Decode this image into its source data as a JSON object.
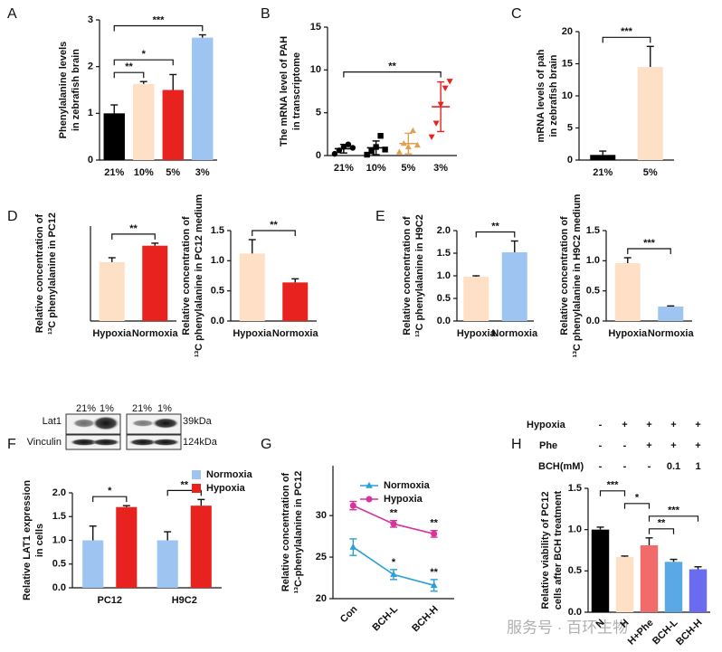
{
  "chart_data": [
    {
      "panel": "A",
      "type": "bar",
      "categories": [
        "21%",
        "10%",
        "5%",
        "3%"
      ],
      "values": [
        1.0,
        1.63,
        1.5,
        2.62
      ],
      "errors": [
        0.18,
        0.05,
        0.33,
        0.06
      ],
      "colors": [
        "#000000",
        "#fde0c5",
        "#e8231f",
        "#9ec5f2"
      ],
      "ylabel": [
        "Phenylalanine levels",
        "in zebrafish brain"
      ],
      "ylim": [
        0,
        3
      ],
      "yticks": [
        0,
        1,
        2,
        3
      ],
      "brackets": [
        {
          "from": 0,
          "to": 1,
          "text": "**"
        },
        {
          "from": 0,
          "to": 2,
          "text": "*"
        },
        {
          "from": 0,
          "to": 3,
          "text": "***"
        }
      ]
    },
    {
      "panel": "B",
      "type": "dot",
      "categories": [
        "21%",
        "10%",
        "5%",
        "3%"
      ],
      "points": [
        [
          0.2,
          0.6,
          1.0,
          1.3,
          0.9
        ],
        [
          0.1,
          0.5,
          1.0,
          2.3,
          0.7
        ],
        [
          0.4,
          1.4,
          1.0,
          2.9,
          1.2
        ],
        [
          2.2,
          3.8,
          6.0,
          7.9,
          8.7
        ]
      ],
      "values": [
        0.8,
        0.9,
        1.4,
        5.7
      ],
      "errors": [
        0.5,
        0.8,
        1.2,
        2.9
      ],
      "colors": [
        "#000000",
        "#000000",
        "#e0a050",
        "#e8231f"
      ],
      "markers": [
        "circle",
        "square",
        "triangle",
        "triangle-down"
      ],
      "ylabel": [
        "The mRNA level of  PAH",
        "in transcriptome"
      ],
      "ylim": [
        0,
        15
      ],
      "yticks": [
        0,
        5,
        10,
        15
      ],
      "brackets": [
        {
          "from": 0,
          "to": 3,
          "text": "**"
        }
      ]
    },
    {
      "panel": "C",
      "type": "bar",
      "categories": [
        "21%",
        "5%"
      ],
      "values": [
        0.8,
        14.5
      ],
      "errors": [
        0.6,
        3.2
      ],
      "colors": [
        "#000000",
        "#fde0c5"
      ],
      "ylabel": [
        "mRNA levels of pah",
        "in zebrafish brain"
      ],
      "ylim": [
        0,
        20
      ],
      "yticks": [
        0,
        5,
        10,
        15,
        20
      ],
      "brackets": [
        {
          "from": 0,
          "to": 1,
          "text": "***"
        }
      ]
    },
    {
      "panel": "D",
      "type": "bar",
      "categories": [
        "Hypoxia",
        "Normoxia"
      ],
      "values": [
        0.93,
        1.19
      ],
      "errors": [
        0.07,
        0.04
      ],
      "colors": [
        "#fde0c5",
        "#e8231f"
      ],
      "ylabel": [
        "Relative concentration of",
        "¹³C phenylalanine in PC12"
      ],
      "ylim": [
        0,
        1.5
      ],
      "yticks": [],
      "brackets": [
        {
          "from": 0,
          "to": 1,
          "text": "**"
        }
      ]
    },
    {
      "type": "bar",
      "categories": [
        "Hypoxia",
        "Normoxia"
      ],
      "values": [
        1.12,
        0.64
      ],
      "errors": [
        0.23,
        0.06
      ],
      "colors": [
        "#fde0c5",
        "#e8231f"
      ],
      "ylabel": [
        "Relative concentration of",
        "¹³C phenylalanine in PC12 medium"
      ],
      "ylim": [
        0,
        1.5
      ],
      "yticks": [
        {
          "value": 0,
          "label": "0.0"
        },
        {
          "value": 0.5,
          "label": "0.5"
        },
        {
          "value": 1,
          "label": "1.0"
        },
        {
          "value": 1.5,
          "label": "1.5"
        }
      ],
      "brackets": [
        {
          "from": 0,
          "to": 1,
          "text": "**"
        }
      ]
    },
    {
      "panel": "E",
      "type": "bar",
      "categories": [
        "Hypoxia",
        "Normoxia"
      ],
      "values": [
        0.98,
        1.52
      ],
      "errors": [
        0.02,
        0.25
      ],
      "colors": [
        "#fde0c5",
        "#9ec5f2"
      ],
      "ylabel": [
        "Relative concentration of",
        "¹³C phenylalanine in H9C2"
      ],
      "ylim": [
        0,
        2
      ],
      "yticks": [
        {
          "value": 0,
          "label": "0.0"
        },
        {
          "value": 0.5,
          "label": "0.5"
        },
        {
          "value": 1,
          "label": "1.0"
        },
        {
          "value": 1.5,
          "label": "1.5"
        },
        {
          "value": 2,
          "label": "2.0"
        }
      ],
      "brackets": [
        {
          "from": 0,
          "to": 1,
          "text": "**"
        }
      ]
    },
    {
      "type": "bar",
      "categories": [
        "Hypoxia",
        "Normoxia"
      ],
      "values": [
        0.96,
        0.24
      ],
      "errors": [
        0.09,
        0.01
      ],
      "colors": [
        "#fde0c5",
        "#9ec5f2"
      ],
      "ylabel": [
        "Relative concentration of",
        "¹³C phenylalanine in H9C2 medium"
      ],
      "ylim": [
        0,
        1.5
      ],
      "yticks": [
        {
          "value": 0,
          "label": "0.0"
        },
        {
          "value": 0.5,
          "label": "0.5"
        },
        {
          "value": 1,
          "label": "1.0"
        },
        {
          "value": 1.5,
          "label": "1.5"
        }
      ],
      "brackets": [
        {
          "from": 0,
          "to": 1,
          "text": "***"
        }
      ]
    },
    {
      "panel": "F",
      "type": "grouped",
      "blot": {
        "lanes": [
          "21%",
          "1%",
          "21%",
          "1%"
        ],
        "rows": [
          "Lat1",
          "Vinculin"
        ],
        "sizes": [
          "39kDa",
          "124kDa"
        ]
      },
      "categories": [
        "PC12",
        "H9C2"
      ],
      "series": [
        {
          "name": "Normoxia",
          "color": "#9ec5f2",
          "values": [
            1.0,
            1.0
          ],
          "errors": [
            0.3,
            0.18
          ]
        },
        {
          "name": "Hypoxia",
          "color": "#e8231f",
          "values": [
            1.7,
            1.73
          ],
          "errors": [
            0.03,
            0.13
          ]
        }
      ],
      "ylabel": [
        "Relative LAT1 expression",
        "in cells"
      ],
      "ylim": [
        0,
        2
      ],
      "yticks": [
        {
          "value": 0,
          "label": "0.0"
        },
        {
          "value": 0.5,
          "label": "0.5"
        },
        {
          "value": 1,
          "label": "1.0"
        },
        {
          "value": 1.5,
          "label": "1.5"
        },
        {
          "value": 2,
          "label": "2.0"
        }
      ],
      "brackets": [
        {
          "category": 0,
          "text": "*"
        },
        {
          "category": 1,
          "text": "**"
        }
      ]
    },
    {
      "panel": "G",
      "type": "line",
      "categories": [
        "Con",
        "BCH-L",
        "BCH-H"
      ],
      "series": [
        {
          "name": "Normoxia",
          "color": "#2a9fd8",
          "marker": "triangle",
          "values": [
            26.2,
            22.9,
            21.6
          ],
          "errors": [
            1.0,
            0.6,
            0.7
          ]
        },
        {
          "name": "Hypoxia",
          "color": "#d6349a",
          "marker": "circle",
          "values": [
            31.2,
            29.0,
            27.8
          ],
          "errors": [
            0.5,
            0.4,
            0.4
          ]
        }
      ],
      "annotations": [
        {
          "series": 0,
          "index": 1,
          "text": "*"
        },
        {
          "series": 0,
          "index": 2,
          "text": "**"
        },
        {
          "series": 1,
          "index": 1,
          "text": "**"
        },
        {
          "series": 1,
          "index": 2,
          "text": "**"
        }
      ],
      "ylabel": [
        "Relative concentration of",
        "¹³C-phenylalanine in PC12"
      ],
      "ylim": [
        20,
        36
      ],
      "yticks": [
        20,
        25,
        30
      ]
    },
    {
      "panel": "H",
      "type": "bar",
      "conditions": [
        {
          "label": "Hypoxia",
          "values": [
            "-",
            "+",
            "+",
            "+",
            "+"
          ]
        },
        {
          "label": "Phe",
          "values": [
            "-",
            "-",
            "+",
            "+",
            "+"
          ]
        },
        {
          "label": "BCH(mM)",
          "values": [
            "-",
            "-",
            "-",
            "0.1",
            "1"
          ]
        }
      ],
      "categories": [
        "N",
        "H",
        "H+Phe",
        "BCH-L",
        "BCH-H"
      ],
      "values": [
        1.0,
        0.67,
        0.81,
        0.61,
        0.52
      ],
      "errors": [
        0.03,
        0.01,
        0.09,
        0.03,
        0.03
      ],
      "colors": [
        "#000000",
        "#fde0c5",
        "#f26b6b",
        "#5aa9e6",
        "#6b6bef"
      ],
      "ylabel": [
        "Relative viability of PC12",
        "cells after BCH treatment"
      ],
      "ylim": [
        0,
        1.5
      ],
      "yticks": [
        {
          "value": 0,
          "label": "0.0"
        },
        {
          "value": 0.5,
          "label": "0.5"
        },
        {
          "value": 1,
          "label": "1.0"
        },
        {
          "value": 1.5,
          "label": "1.5"
        }
      ],
      "brackets": [
        {
          "from": 2,
          "to": 3,
          "text": "**"
        },
        {
          "from": 2,
          "to": 4,
          "text": "***"
        },
        {
          "from": 1,
          "to": 2,
          "text": "*"
        },
        {
          "from": 0,
          "to": 1,
          "text": "***"
        }
      ]
    }
  ],
  "watermark": "服务号 · 百环生物"
}
